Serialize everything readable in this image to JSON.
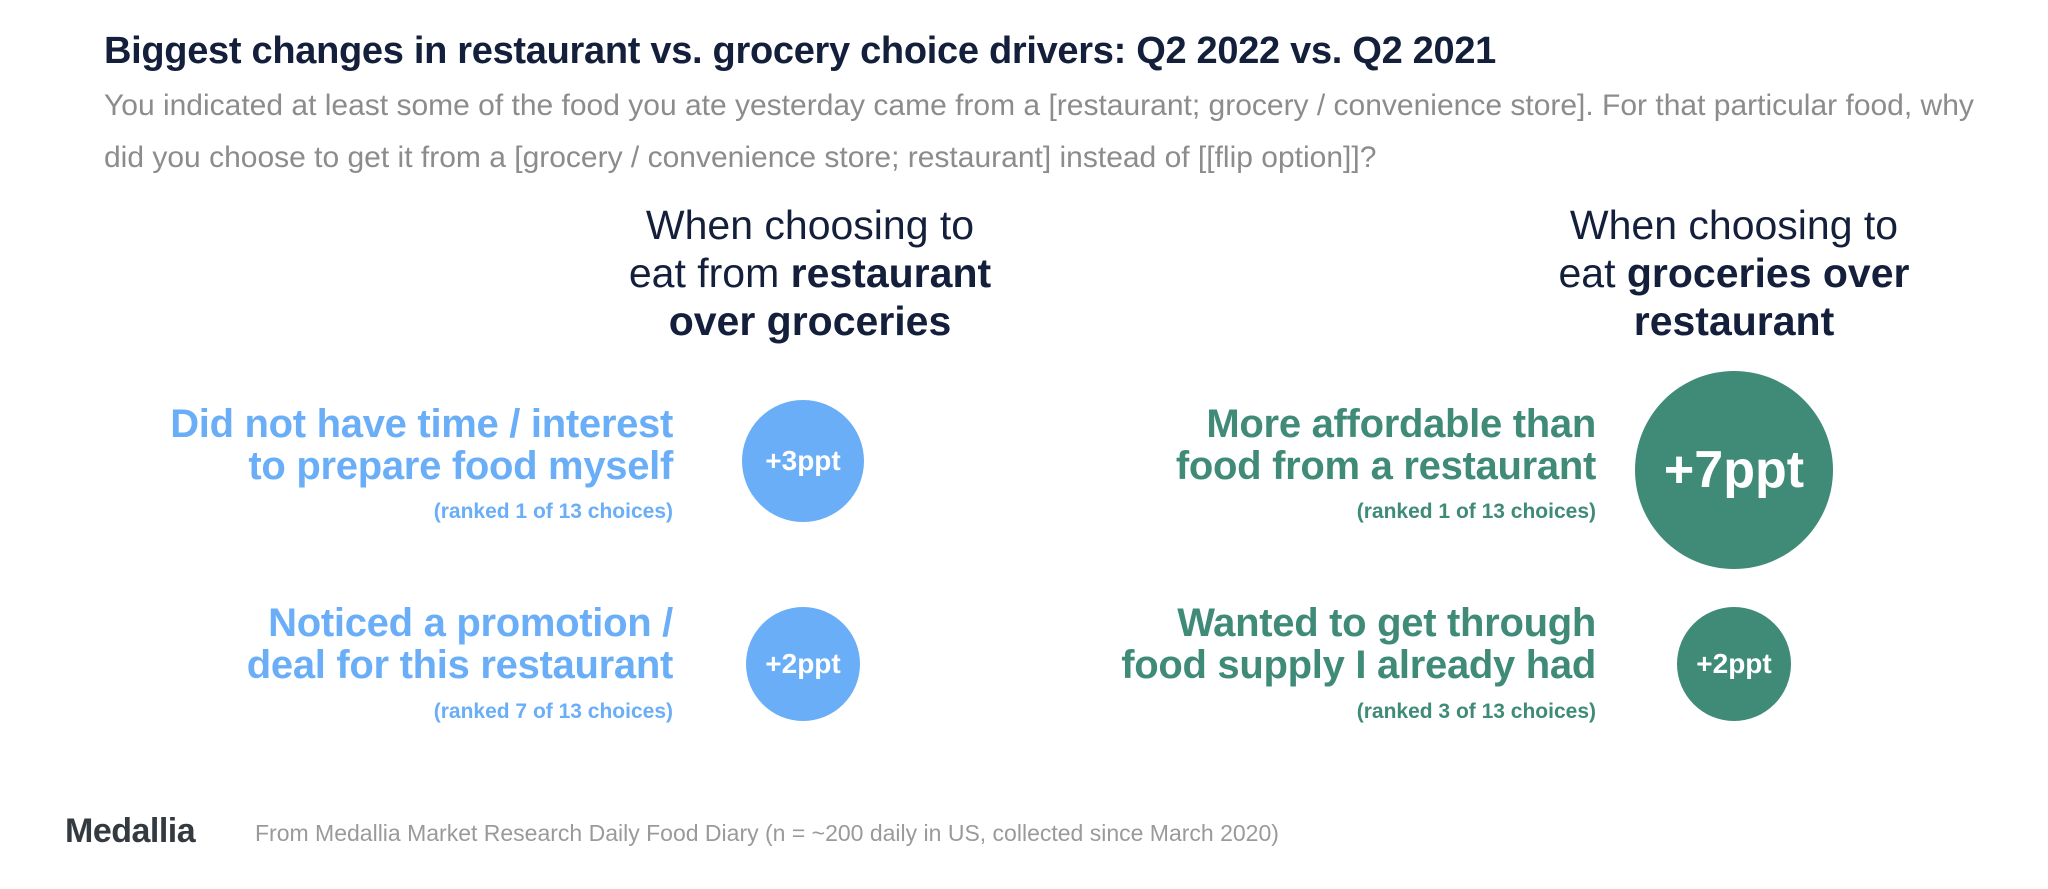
{
  "title": "Biggest changes in restaurant vs. grocery choice drivers: Q2 2022 vs. Q2 2021",
  "subtitle": "You indicated at least some of the food you ate yesterday came from a [restaurant; grocery / convenience store].  For that particular food, why did you choose to get it from a [grocery / convenience store; restaurant] instead of [[flip option]]?",
  "colors": {
    "restaurant": "#6aaef8",
    "grocery": "#3f8b78",
    "title": "#14203b"
  },
  "left": {
    "heading_line1": "When choosing to",
    "heading_line2_plain": "eat from ",
    "heading_line2_bold": "restaurant",
    "heading_line3_bold": "over groceries",
    "items": [
      {
        "line1": "Did not have time / interest",
        "line2": "to prepare food myself",
        "rank": "(ranked 1 of 13 choices)",
        "change": "+3ppt",
        "change_value": 3
      },
      {
        "line1": "Noticed a promotion /",
        "line2": "deal for this restaurant",
        "rank": "(ranked 7 of 13 choices)",
        "change": "+2ppt",
        "change_value": 2
      }
    ]
  },
  "right": {
    "heading_line1": "When choosing to",
    "heading_line2_plain": "eat ",
    "heading_line2_bold": "groceries over",
    "heading_line3_bold": "restaurant",
    "items": [
      {
        "line1": "More affordable than",
        "line2": "food from a restaurant",
        "rank": "(ranked 1 of 13 choices)",
        "change": "+7ppt",
        "change_value": 7
      },
      {
        "line1": "Wanted to get through",
        "line2": "food supply I already had",
        "rank": "(ranked 3 of 13 choices)",
        "change": "+2ppt",
        "change_value": 2
      }
    ]
  },
  "footer": {
    "logo": "Medallia",
    "source": "From Medallia Market Research Daily Food Diary (n = ~200 daily in US, collected since March 2020)"
  }
}
